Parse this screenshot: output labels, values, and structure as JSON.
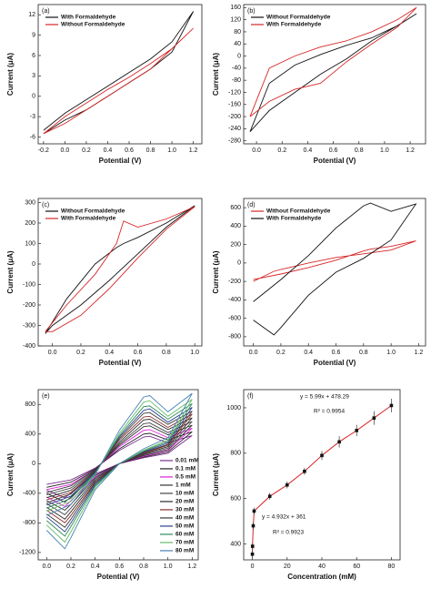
{
  "chart_data": [
    {
      "type": "line",
      "label": "(a)",
      "x_label": "Potential (V)",
      "y_label": "Current (μA)",
      "legend": "upper left",
      "xlim": [
        -0.25,
        1.28
      ],
      "ylim": [
        -7,
        13.5
      ],
      "xticks": [
        -0.2,
        {
          "value": 0,
          "label": "0.0"
        },
        0.2,
        0.4,
        0.6,
        0.8,
        {
          "value": 1,
          "label": "1.0"
        },
        1.2
      ],
      "yticks": [
        -6,
        -3,
        0,
        3,
        6,
        9,
        12
      ],
      "x": [
        -0.2,
        0,
        0.2,
        0.4,
        0.6,
        0.8,
        1.0,
        1.2,
        1.0,
        0.8,
        0.6,
        0.4,
        0.2,
        0,
        -0.2
      ],
      "series": [
        {
          "name": "With Formaldehyde",
          "color": "#111111",
          "values": [
            -5,
            -2.5,
            -0.5,
            1.5,
            3.5,
            5.5,
            8,
            12.5,
            6.5,
            4,
            2,
            0,
            -2,
            -3.5,
            -5.5
          ]
        },
        {
          "name": "Without Formaldehyde",
          "color": "#d62728",
          "values": [
            -5.5,
            -3,
            -1,
            1,
            2.8,
            4.8,
            7,
            10,
            7,
            4,
            2,
            0,
            -2,
            -4,
            -5.5
          ]
        }
      ]
    },
    {
      "type": "line",
      "label": "(b)",
      "x_label": "Potential (V)",
      "y_label": "Current (μA)",
      "legend": "upper left",
      "xlim": [
        -0.1,
        1.32
      ],
      "ylim": [
        -290,
        170
      ],
      "xticks": [
        {
          "value": 0,
          "label": "0.0"
        },
        0.2,
        0.4,
        0.6,
        0.8,
        {
          "value": 1,
          "label": "1.0"
        },
        1.2
      ],
      "yticks": [
        -280,
        -240,
        -200,
        -160,
        -120,
        -80,
        -40,
        0,
        40,
        80,
        120,
        160
      ],
      "x": [
        -0.05,
        0.1,
        0.3,
        0.5,
        0.7,
        0.9,
        1.1,
        1.25,
        1.1,
        0.9,
        0.7,
        0.5,
        0.3,
        0.1,
        -0.05
      ],
      "series": [
        {
          "name": "Without Formaldehyde",
          "color": "#111111",
          "values": [
            -250,
            -180,
            -120,
            -60,
            -10,
            50,
            100,
            140,
            100,
            60,
            35,
            5,
            -30,
            -90,
            -250
          ]
        },
        {
          "name": "With Formaldehyde",
          "color": "#d62728",
          "values": [
            -200,
            -150,
            -110,
            -90,
            -20,
            40,
            95,
            160,
            120,
            80,
            50,
            30,
            0,
            -40,
            -200
          ]
        }
      ]
    },
    {
      "type": "line",
      "label": "(c)",
      "x_label": "Potential (V)",
      "y_label": "Current (μA)",
      "legend": "upper left",
      "xlim": [
        -0.1,
        1.05
      ],
      "ylim": [
        -400,
        320
      ],
      "xticks": [
        {
          "value": 0,
          "label": "0.0"
        },
        0.2,
        0.4,
        0.6,
        0.8,
        {
          "value": 1,
          "label": "1.0"
        }
      ],
      "yticks": [
        -400,
        -300,
        -200,
        -100,
        0,
        100,
        200,
        300
      ],
      "x": [
        -0.05,
        0.1,
        0.3,
        0.45,
        0.5,
        0.6,
        0.8,
        1.0,
        0.8,
        0.6,
        0.4,
        0.2,
        0,
        -0.05
      ],
      "series": [
        {
          "name": "Without Formaldehyde",
          "color": "#111111",
          "values": [
            -340,
            -170,
            0,
            80,
            100,
            130,
            200,
            285,
            180,
            50,
            -80,
            -200,
            -300,
            -340
          ]
        },
        {
          "name": "With Formaldehyde",
          "color": "#d62728",
          "values": [
            -330,
            -200,
            -50,
            100,
            210,
            180,
            220,
            280,
            170,
            30,
            -120,
            -250,
            -330,
            -330
          ]
        }
      ]
    },
    {
      "type": "line",
      "label": "(d)",
      "x_label": "Potential (V)",
      "y_label": "Current (μA)",
      "legend": "upper left",
      "xlim": [
        -0.07,
        1.25
      ],
      "ylim": [
        -900,
        700
      ],
      "xticks": [
        {
          "value": 0,
          "label": "0.0"
        },
        0.2,
        0.4,
        0.6,
        0.8,
        {
          "value": 1,
          "label": "1.0"
        },
        1.2
      ],
      "yticks": [
        -800,
        -600,
        -400,
        -200,
        0,
        200,
        400,
        600
      ],
      "x": [
        0,
        0.2,
        0.4,
        0.6,
        0.8,
        0.85,
        1.0,
        1.18,
        1.0,
        0.8,
        0.6,
        0.4,
        0.2,
        0.15,
        0
      ],
      "series": [
        {
          "name": "Without Formaldehyde",
          "color": "#d62728",
          "values": [
            -180,
            -120,
            -50,
            30,
            130,
            150,
            180,
            240,
            140,
            100,
            60,
            0,
            -70,
            -90,
            -200
          ]
        },
        {
          "name": "With Formaldehyde",
          "color": "#111111",
          "values": [
            -420,
            -180,
            80,
            380,
            620,
            650,
            560,
            640,
            250,
            50,
            -100,
            -350,
            -700,
            -780,
            -620
          ]
        }
      ]
    },
    {
      "type": "line",
      "label": "(e)",
      "x_label": "Potential (V)",
      "y_label": "Current (μA)",
      "legend": "center right",
      "xlim": [
        -0.07,
        1.25
      ],
      "ylim": [
        -1300,
        1000
      ],
      "xticks": [
        {
          "value": 0,
          "label": "0.0"
        },
        0.2,
        0.4,
        0.6,
        0.8,
        {
          "value": 1,
          "label": "1.0"
        },
        1.2
      ],
      "yticks": [
        -1200,
        -800,
        -400,
        0,
        400,
        800
      ],
      "x": [
        0,
        0.2,
        0.4,
        0.6,
        0.8,
        0.85,
        1.0,
        1.2,
        1.0,
        0.8,
        0.6,
        0.4,
        0.2,
        0.15,
        0
      ],
      "series": [
        {
          "name": "0.01 mM",
          "color": "#7b2d8e",
          "values": [
            -280,
            -220,
            -60,
            180,
            360,
            370,
            280,
            380,
            140,
            80,
            0,
            -140,
            -400,
            -460,
            -360
          ]
        },
        {
          "name": "0.1 mM",
          "color": "#222222",
          "values": [
            -320,
            -250,
            -70,
            200,
            400,
            410,
            320,
            430,
            160,
            90,
            0,
            -160,
            -450,
            -520,
            -400
          ]
        },
        {
          "name": "0.5 mM",
          "color": "#e020e0",
          "values": [
            -350,
            -280,
            -80,
            230,
            450,
            460,
            350,
            480,
            180,
            100,
            0,
            -180,
            -500,
            -580,
            -450
          ]
        },
        {
          "name": "1 mM",
          "color": "#333333",
          "values": [
            -390,
            -300,
            -80,
            250,
            500,
            510,
            390,
            520,
            190,
            110,
            0,
            -190,
            -550,
            -630,
            -500
          ]
        },
        {
          "name": "10 mM",
          "color": "#444444",
          "values": [
            -420,
            -330,
            -90,
            270,
            540,
            550,
            420,
            570,
            210,
            120,
            0,
            -210,
            -600,
            -690,
            -540
          ]
        },
        {
          "name": "20 mM",
          "color": "#2b2b2b",
          "values": [
            -460,
            -360,
            -100,
            290,
            590,
            600,
            460,
            620,
            230,
            130,
            0,
            -230,
            -650,
            -750,
            -590
          ]
        },
        {
          "name": "30 mM",
          "color": "#8b2d2d",
          "values": [
            -490,
            -390,
            -110,
            320,
            630,
            640,
            490,
            670,
            250,
            140,
            0,
            -250,
            -700,
            -800,
            -630
          ]
        },
        {
          "name": "40 mM",
          "color": "#3a3a3a",
          "values": [
            -530,
            -410,
            -110,
            340,
            680,
            690,
            530,
            710,
            260,
            150,
            0,
            -260,
            -750,
            -860,
            -680
          ]
        },
        {
          "name": "50 mM",
          "color": "#2c3e8f",
          "values": [
            -560,
            -440,
            -120,
            360,
            720,
            740,
            560,
            760,
            280,
            160,
            0,
            -280,
            -800,
            -920,
            -720
          ]
        },
        {
          "name": "60 mM",
          "color": "#2e8b57",
          "values": [
            -600,
            -470,
            -130,
            380,
            770,
            780,
            600,
            810,
            300,
            170,
            0,
            -300,
            -850,
            -980,
            -770
          ]
        },
        {
          "name": "70 mM",
          "color": "#66bb66",
          "values": [
            -640,
            -510,
            -140,
            410,
            830,
            850,
            640,
            870,
            320,
            180,
            0,
            -320,
            -920,
            -1060,
            -830
          ]
        },
        {
          "name": "80 mM",
          "color": "#4682b4",
          "values": [
            -700,
            -550,
            -150,
            450,
            900,
            920,
            700,
            950,
            350,
            200,
            0,
            -350,
            -1000,
            -1150,
            -900
          ]
        }
      ]
    },
    {
      "type": "scatter",
      "label": "(f)",
      "x_label": "Concentration (mM)",
      "y_label": "Current (μA)",
      "xlim": [
        -5,
        85
      ],
      "ylim": [
        330,
        1080
      ],
      "xticks": [
        0,
        20,
        40,
        60,
        80
      ],
      "yticks": [
        400,
        600,
        800,
        1000
      ],
      "x": [
        0.01,
        0.1,
        0.5,
        1,
        10,
        20,
        30,
        40,
        50,
        60,
        70,
        80
      ],
      "series": [
        {
          "color": "#111111",
          "line_color": "#d62728",
          "values": [
            355,
            390,
            480,
            545,
            610,
            660,
            720,
            790,
            850,
            900,
            955,
            1010
          ],
          "errors": [
            15,
            15,
            15,
            15,
            15,
            15,
            15,
            20,
            25,
            25,
            30,
            30
          ]
        }
      ],
      "annotations": [
        {
          "text": "y = 5.99x + 478.29",
          "color": "#4f81bd"
        },
        {
          "text": "R² = 0.9954",
          "color": "#4f81bd"
        },
        {
          "text": "y = 4.932x + 361",
          "color": "#4f81bd"
        },
        {
          "text": "R² = 0.9923",
          "color": "#4f81bd"
        }
      ]
    }
  ]
}
